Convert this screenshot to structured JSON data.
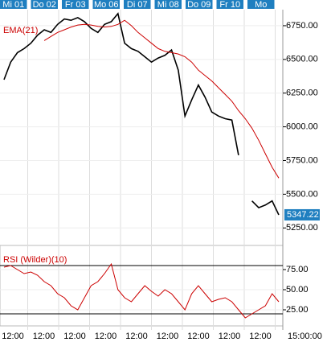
{
  "chart_data": [
    {
      "type": "line",
      "x": [
        0,
        1,
        2,
        3,
        4,
        5,
        6,
        7,
        8,
        9,
        10,
        11,
        12,
        13,
        14,
        15,
        16,
        17,
        18,
        19,
        20,
        21,
        22,
        23,
        24,
        25,
        26,
        27,
        28,
        29,
        30,
        31,
        32,
        33,
        34,
        35,
        36,
        37,
        38,
        39,
        40,
        41
      ],
      "xlim": [
        -0.6,
        41.6
      ],
      "day_labels": [
        "Mi 01",
        "Do 02",
        "Fr 03",
        "Mo 06",
        "Di 07",
        "Mi 08",
        "Do 09",
        "Fr 10",
        "Mo"
      ],
      "series": [
        {
          "color": "#000000",
          "values": [
            6350,
            6480,
            6550,
            6580,
            6620,
            6680,
            6720,
            6700,
            6760,
            6800,
            6790,
            6810,
            6780,
            6730,
            6700,
            6760,
            6780,
            6840,
            6620,
            6580,
            6560,
            6520,
            6480,
            6510,
            6530,
            6570,
            6420,
            6080,
            6200,
            6310,
            6220,
            6110,
            6080,
            6060,
            6050,
            5790,
            null,
            5450,
            5400,
            5420,
            5450,
            5347.22
          ]
        },
        {
          "name": "EMA(21)",
          "color": "#cc0000",
          "values": [
            null,
            null,
            null,
            null,
            null,
            null,
            6640,
            6670,
            6700,
            6720,
            6740,
            6755,
            6760,
            6755,
            6745,
            6740,
            6745,
            6760,
            6790,
            6750,
            6700,
            6660,
            6620,
            6580,
            6560,
            6550,
            6540,
            6520,
            6480,
            6420,
            6380,
            6340,
            6290,
            6240,
            6190,
            6120,
            6060,
            5990,
            5900,
            5800,
            5700,
            5620
          ]
        }
      ],
      "ylim": [
        5150,
        6869
      ],
      "yticks": [
        {
          "value": 5250,
          "label": "5250.00"
        },
        {
          "value": 5500,
          "label": "5500.00"
        },
        {
          "value": 5750,
          "label": "5750.00"
        },
        {
          "value": 6000,
          "label": "6000.00"
        },
        {
          "value": 6250,
          "label": "6250.00"
        },
        {
          "value": 6500,
          "label": "6500.00"
        },
        {
          "value": 6750,
          "label": "6750.00"
        }
      ]
    },
    {
      "type": "line",
      "x": [
        0,
        1,
        2,
        3,
        4,
        5,
        6,
        7,
        8,
        9,
        10,
        11,
        12,
        13,
        14,
        15,
        16,
        17,
        18,
        19,
        20,
        21,
        22,
        23,
        24,
        25,
        26,
        27,
        28,
        29,
        30,
        31,
        32,
        33,
        34,
        35,
        36,
        37,
        38,
        39,
        40,
        41
      ],
      "xlim": [
        -0.6,
        41.6
      ],
      "series": [
        {
          "name": "RSI (Wilder)(10)",
          "color": "#cc0000",
          "values": [
            78,
            80,
            75,
            70,
            72,
            68,
            60,
            55,
            45,
            40,
            30,
            25,
            40,
            55,
            60,
            70,
            82,
            50,
            40,
            35,
            45,
            55,
            48,
            42,
            50,
            45,
            35,
            25,
            45,
            55,
            45,
            35,
            38,
            40,
            35,
            25,
            15,
            20,
            25,
            30,
            45,
            35
          ]
        }
      ],
      "levels": [
        80,
        20
      ],
      "ylim": [
        5,
        105
      ],
      "yticks": [
        {
          "value": 25,
          "label": "25.00"
        },
        {
          "value": 50,
          "label": "50.00"
        },
        {
          "value": 75,
          "label": "75.00"
        }
      ],
      "time_labels": [
        "12:00",
        "12:00",
        "12:00",
        "12:00",
        "12:00",
        "12:00",
        "12:00",
        "12:00",
        "12:00"
      ],
      "axis_end_label": "15:00:00"
    }
  ]
}
